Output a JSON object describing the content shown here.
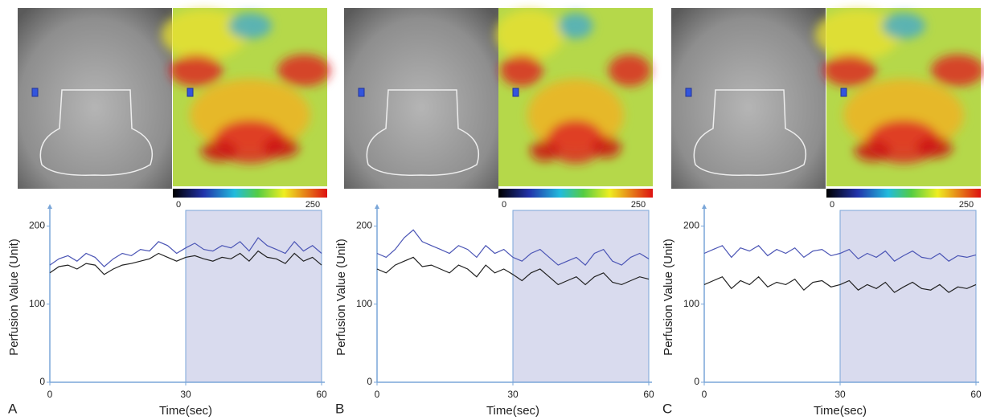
{
  "chart_data": [
    {
      "type": "line",
      "panel_label": "A",
      "xlabel": "Time(sec)",
      "ylabel": "Perfusion Value (Unit)",
      "x": [
        0,
        2,
        4,
        6,
        8,
        10,
        12,
        14,
        16,
        18,
        20,
        22,
        24,
        26,
        28,
        30,
        32,
        34,
        36,
        38,
        40,
        42,
        44,
        46,
        48,
        50,
        52,
        54,
        56,
        58,
        60
      ],
      "series": [
        {
          "color": "#4b55b5",
          "values": [
            150,
            158,
            162,
            155,
            165,
            160,
            148,
            158,
            165,
            162,
            170,
            168,
            180,
            175,
            165,
            172,
            178,
            170,
            168,
            175,
            172,
            180,
            168,
            185,
            175,
            170,
            165,
            180,
            168,
            175,
            165
          ]
        },
        {
          "color": "#222222",
          "values": [
            140,
            148,
            150,
            145,
            152,
            150,
            138,
            145,
            150,
            152,
            155,
            158,
            165,
            160,
            155,
            160,
            162,
            158,
            155,
            160,
            158,
            165,
            155,
            168,
            160,
            158,
            152,
            165,
            155,
            160,
            150
          ]
        }
      ],
      "highlight": [
        30,
        60
      ],
      "xlim": [
        0,
        60
      ],
      "ylim": [
        0,
        220
      ],
      "xticks": [
        0,
        30,
        60
      ],
      "yticks": [
        0,
        100,
        200
      ],
      "colorbar_ticks": [
        0,
        250
      ]
    },
    {
      "type": "line",
      "panel_label": "B",
      "xlabel": "Time(sec)",
      "ylabel": "Perfusion Value (Unit)",
      "x": [
        0,
        2,
        4,
        6,
        8,
        10,
        12,
        14,
        16,
        18,
        20,
        22,
        24,
        26,
        28,
        30,
        32,
        34,
        36,
        38,
        40,
        42,
        44,
        46,
        48,
        50,
        52,
        54,
        56,
        58,
        60
      ],
      "series": [
        {
          "color": "#4b55b5",
          "values": [
            165,
            160,
            170,
            185,
            195,
            180,
            175,
            170,
            165,
            175,
            170,
            160,
            175,
            165,
            170,
            160,
            155,
            165,
            170,
            160,
            150,
            155,
            160,
            150,
            165,
            170,
            155,
            150,
            160,
            165,
            158
          ]
        },
        {
          "color": "#222222",
          "values": [
            145,
            140,
            150,
            155,
            160,
            148,
            150,
            145,
            140,
            150,
            145,
            135,
            150,
            140,
            145,
            138,
            130,
            140,
            145,
            135,
            125,
            130,
            135,
            125,
            135,
            140,
            128,
            125,
            130,
            135,
            132
          ]
        }
      ],
      "highlight": [
        30,
        60
      ],
      "xlim": [
        0,
        60
      ],
      "ylim": [
        0,
        220
      ],
      "xticks": [
        0,
        30,
        60
      ],
      "yticks": [
        0,
        100,
        200
      ],
      "colorbar_ticks": [
        0,
        250
      ]
    },
    {
      "type": "line",
      "panel_label": "C",
      "xlabel": "Time(sec)",
      "ylabel": "Perfusion Value (Unit)",
      "x": [
        0,
        2,
        4,
        6,
        8,
        10,
        12,
        14,
        16,
        18,
        20,
        22,
        24,
        26,
        28,
        30,
        32,
        34,
        36,
        38,
        40,
        42,
        44,
        46,
        48,
        50,
        52,
        54,
        56,
        58,
        60
      ],
      "series": [
        {
          "color": "#4b55b5",
          "values": [
            165,
            170,
            175,
            160,
            172,
            168,
            175,
            162,
            170,
            165,
            172,
            160,
            168,
            170,
            162,
            165,
            170,
            158,
            165,
            160,
            168,
            155,
            162,
            168,
            160,
            158,
            165,
            155,
            162,
            160,
            163
          ]
        },
        {
          "color": "#222222",
          "values": [
            125,
            130,
            135,
            120,
            130,
            125,
            135,
            122,
            128,
            125,
            132,
            118,
            128,
            130,
            122,
            125,
            130,
            118,
            125,
            120,
            128,
            115,
            122,
            128,
            120,
            118,
            125,
            115,
            122,
            120,
            125
          ]
        }
      ],
      "highlight": [
        30,
        60
      ],
      "xlim": [
        0,
        60
      ],
      "ylim": [
        0,
        220
      ],
      "xticks": [
        0,
        30,
        60
      ],
      "yticks": [
        0,
        100,
        200
      ],
      "colorbar_ticks": [
        0,
        250
      ]
    }
  ]
}
